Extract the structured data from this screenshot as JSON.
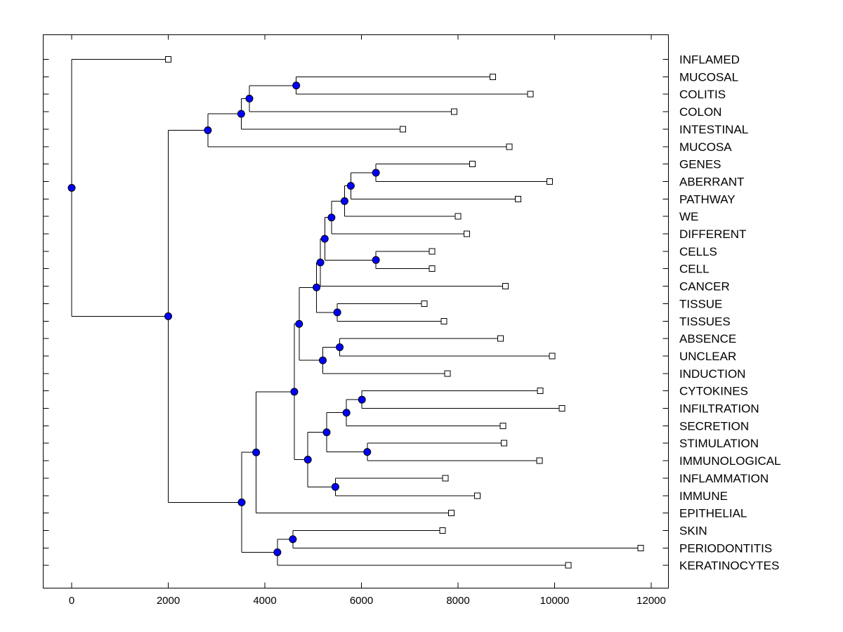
{
  "chart_data": {
    "type": "dendrogram",
    "title": "",
    "xlabel": "",
    "ylabel": "",
    "xlim": [
      -600,
      12400
    ],
    "x_ticks": [
      0,
      2000,
      4000,
      6000,
      8000,
      10000,
      12000
    ],
    "x_tick_labels": [
      "0",
      "2000",
      "4000",
      "6000",
      "8000",
      "10000",
      "12000"
    ],
    "colors": {
      "node": "#0000ff",
      "leaf": "#ffffff",
      "line": "#000000"
    },
    "leaves": [
      {
        "label": "INFLAMED",
        "x": 2000
      },
      {
        "label": "MUCOSAL",
        "x": 8720
      },
      {
        "label": "COLITIS",
        "x": 9500
      },
      {
        "label": "COLON",
        "x": 7920
      },
      {
        "label": "INTESTINAL",
        "x": 6860
      },
      {
        "label": "MUCOSA",
        "x": 9060
      },
      {
        "label": "GENES",
        "x": 8300
      },
      {
        "label": "ABERRANT",
        "x": 9900
      },
      {
        "label": "PATHWAY",
        "x": 9240
      },
      {
        "label": "WE",
        "x": 8000
      },
      {
        "label": "DIFFERENT",
        "x": 8180
      },
      {
        "label": "CELLS",
        "x": 7460
      },
      {
        "label": "CELL",
        "x": 7460
      },
      {
        "label": "CANCER",
        "x": 8980
      },
      {
        "label": "TISSUE",
        "x": 7300
      },
      {
        "label": "TISSUES",
        "x": 7710
      },
      {
        "label": "ABSENCE",
        "x": 8880
      },
      {
        "label": "UNCLEAR",
        "x": 9950
      },
      {
        "label": "INDUCTION",
        "x": 7780
      },
      {
        "label": "CYTOKINES",
        "x": 9700
      },
      {
        "label": "INFILTRATION",
        "x": 10150
      },
      {
        "label": "SECRETION",
        "x": 8930
      },
      {
        "label": "STIMULATION",
        "x": 8950
      },
      {
        "label": "IMMUNOLOGICAL",
        "x": 9690
      },
      {
        "label": "INFLAMMATION",
        "x": 7740
      },
      {
        "label": "IMMUNE",
        "x": 8400
      },
      {
        "label": "EPITHELIAL",
        "x": 7860
      },
      {
        "label": "SKIN",
        "x": 7680
      },
      {
        "label": "PERIODONTITIS",
        "x": 11780
      },
      {
        "label": "KERATINOCYTES",
        "x": 10280
      }
    ],
    "nodes": [
      {
        "id": "n_mucosal_colitis",
        "x": 4650,
        "children": [
          "MUCOSAL",
          "COLITIS"
        ]
      },
      {
        "id": "n_colon",
        "x": 3680,
        "children": [
          "n_mucosal_colitis",
          "COLON"
        ]
      },
      {
        "id": "n_intestinal",
        "x": 3510,
        "children": [
          "n_colon",
          "INTESTINAL"
        ]
      },
      {
        "id": "n_mucosa",
        "x": 2820,
        "children": [
          "n_intestinal",
          "MUCOSA"
        ]
      },
      {
        "id": "n_genes_aberrant",
        "x": 6300,
        "children": [
          "GENES",
          "ABERRANT"
        ]
      },
      {
        "id": "n_pathway",
        "x": 5780,
        "children": [
          "n_genes_aberrant",
          "PATHWAY"
        ]
      },
      {
        "id": "n_we",
        "x": 5650,
        "children": [
          "n_pathway",
          "WE"
        ]
      },
      {
        "id": "n_different",
        "x": 5380,
        "children": [
          "n_we",
          "DIFFERENT"
        ]
      },
      {
        "id": "n_cells_cell",
        "x": 6300,
        "children": [
          "CELLS",
          "CELL"
        ]
      },
      {
        "id": "n_diff_cells",
        "x": 5240,
        "children": [
          "n_different",
          "n_cells_cell"
        ]
      },
      {
        "id": "n_cancer_join",
        "x": 5150,
        "children": [
          "n_diff_cells",
          "CANCER"
        ]
      },
      {
        "id": "n_tissue",
        "x": 5500,
        "children": [
          "TISSUE",
          "TISSUES"
        ]
      },
      {
        "id": "n_cancer_tissue",
        "x": 5070,
        "children": [
          "n_cancer_join",
          "n_tissue"
        ]
      },
      {
        "id": "n_absence",
        "x": 5550,
        "children": [
          "ABSENCE",
          "UNCLEAR"
        ]
      },
      {
        "id": "n_induction",
        "x": 5200,
        "children": [
          "n_absence",
          "INDUCTION"
        ]
      },
      {
        "id": "n_upper_mid",
        "x": 4710,
        "children": [
          "n_cancer_tissue",
          "n_induction"
        ]
      },
      {
        "id": "n_cytokines",
        "x": 6010,
        "children": [
          "CYTOKINES",
          "INFILTRATION"
        ]
      },
      {
        "id": "n_secretion",
        "x": 5690,
        "children": [
          "n_cytokines",
          "SECRETION"
        ]
      },
      {
        "id": "n_stimulation",
        "x": 6120,
        "children": [
          "STIMULATION",
          "IMMUNOLOGICAL"
        ]
      },
      {
        "id": "n_stim_join",
        "x": 5280,
        "children": [
          "n_secretion",
          "n_stimulation"
        ]
      },
      {
        "id": "n_inflammation",
        "x": 5460,
        "children": [
          "INFLAMMATION",
          "IMMUNE"
        ]
      },
      {
        "id": "n_immune_block",
        "x": 4890,
        "children": [
          "n_stim_join",
          "n_inflammation"
        ]
      },
      {
        "id": "n_mid",
        "x": 4610,
        "children": [
          "n_upper_mid",
          "n_immune_block"
        ]
      },
      {
        "id": "n_epithelial",
        "x": 3820,
        "children": [
          "n_mid",
          "EPITHELIAL"
        ]
      },
      {
        "id": "n_skin",
        "x": 4580,
        "children": [
          "SKIN",
          "PERIODONTITIS"
        ]
      },
      {
        "id": "n_keratinocytes",
        "x": 4260,
        "children": [
          "n_skin",
          "KERATINOCYTES"
        ]
      },
      {
        "id": "n_lower",
        "x": 3520,
        "children": [
          "n_epithelial",
          "n_keratinocytes"
        ]
      },
      {
        "id": "n_bottom",
        "x": 2000,
        "children": [
          "n_mucosa",
          "n_lower"
        ]
      },
      {
        "id": "n_root",
        "x": 0,
        "children": [
          "INFLAMED",
          "n_bottom"
        ]
      }
    ]
  }
}
